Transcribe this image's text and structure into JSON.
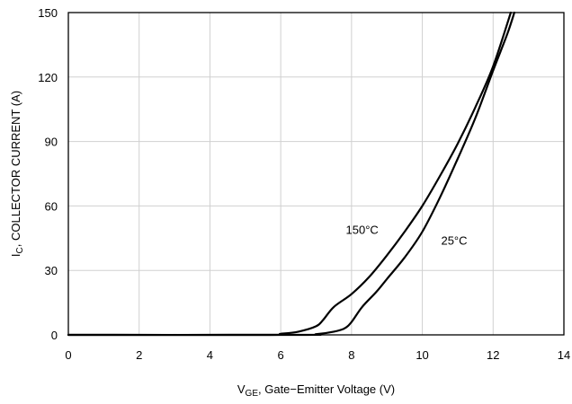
{
  "chart_data": {
    "type": "line",
    "xlabel_main": "V",
    "xlabel_sub": "GE",
    "xlabel_rest": ", Gate−Emitter Voltage (V)",
    "ylabel_main": "I",
    "ylabel_sub": "C",
    "ylabel_rest": ", COLLECTOR CURRENT (A)",
    "xlim": [
      0,
      14
    ],
    "ylim": [
      0,
      150
    ],
    "xticks": [
      "0",
      "2",
      "4",
      "6",
      "8",
      "10",
      "12",
      "14"
    ],
    "yticks": [
      "0",
      "30",
      "60",
      "90",
      "120",
      "150"
    ],
    "grid": true,
    "series": [
      {
        "name": "150°C",
        "x": [
          0,
          5.5,
          6.0,
          6.5,
          7.0,
          7.2,
          7.5,
          8.0,
          8.5,
          9.0,
          9.5,
          10.0,
          10.5,
          11.0,
          11.5,
          12.0,
          12.5
        ],
        "y": [
          0,
          0,
          0.5,
          1.5,
          4,
          7,
          13,
          19,
          27,
          37,
          48,
          60,
          74,
          89,
          106,
          125,
          150
        ]
      },
      {
        "name": "25°C",
        "x": [
          0,
          6.5,
          7.0,
          7.5,
          7.8,
          8.0,
          8.3,
          8.7,
          9.0,
          9.5,
          10.0,
          10.5,
          11.0,
          11.5,
          12.0,
          12.4,
          12.6
        ],
        "y": [
          0,
          0,
          0.3,
          1.5,
          3,
          6,
          13,
          20,
          26,
          36,
          48,
          64,
          82,
          101,
          123,
          140,
          150
        ]
      }
    ],
    "annotations": [
      {
        "text": "150°C",
        "x": 8.3,
        "y": 47
      },
      {
        "text": "25°C",
        "x": 10.9,
        "y": 42
      }
    ]
  }
}
